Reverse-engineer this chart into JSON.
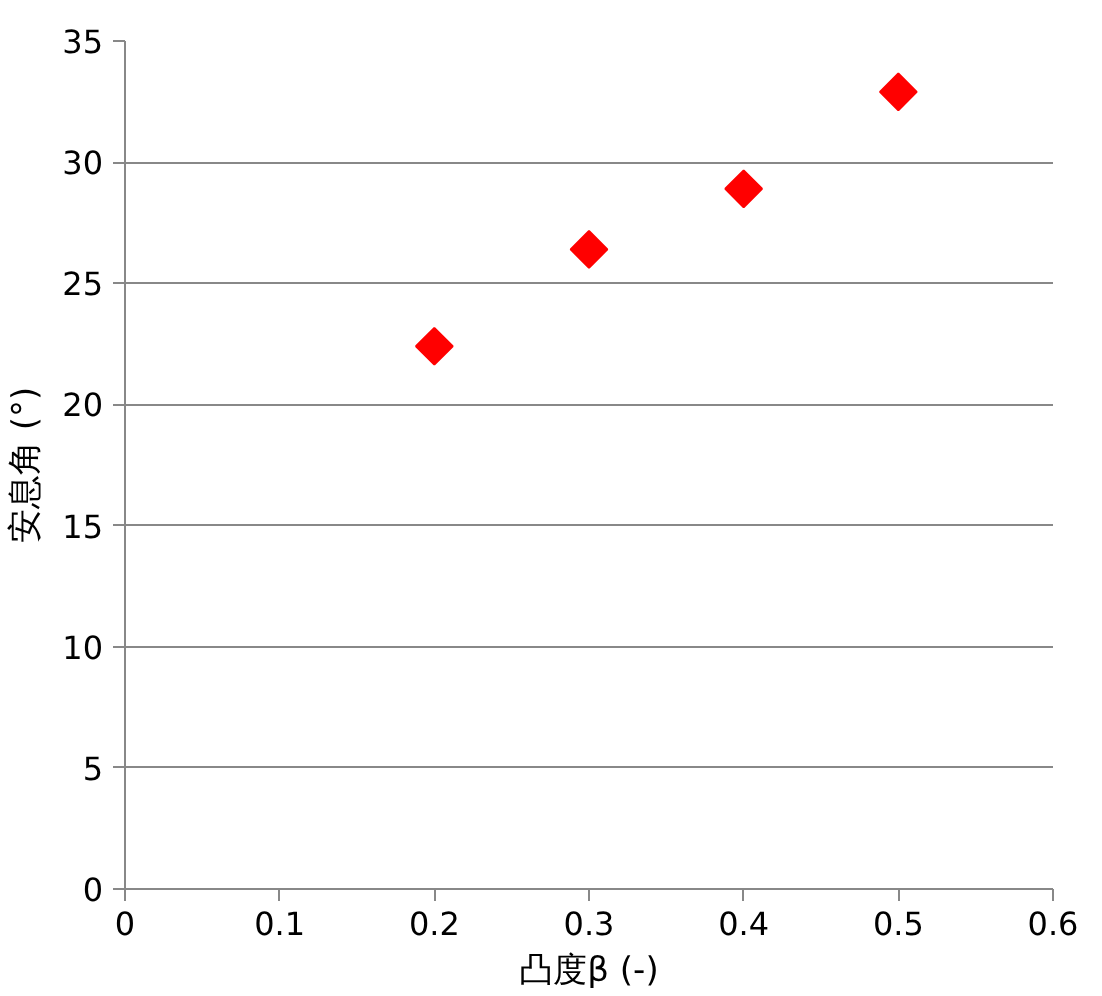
{
  "chart_data": {
    "type": "scatter",
    "xlabel": "凸度β (-)",
    "ylabel": "安息角 (°)",
    "x": [
      0.2,
      0.3,
      0.4,
      0.5
    ],
    "series": [
      {
        "color": "#ff0000",
        "values": [
          22.4,
          26.4,
          28.9,
          32.9
        ]
      }
    ],
    "xlim": [
      0,
      0.6
    ],
    "xticks": [
      0,
      0.1,
      0.2,
      0.3,
      0.4,
      0.5,
      0.6
    ],
    "ylim": [
      0,
      35
    ],
    "yticks": [
      0,
      5,
      10,
      15,
      20,
      25,
      30,
      35
    ],
    "grid": "y",
    "marker": "diamond"
  }
}
